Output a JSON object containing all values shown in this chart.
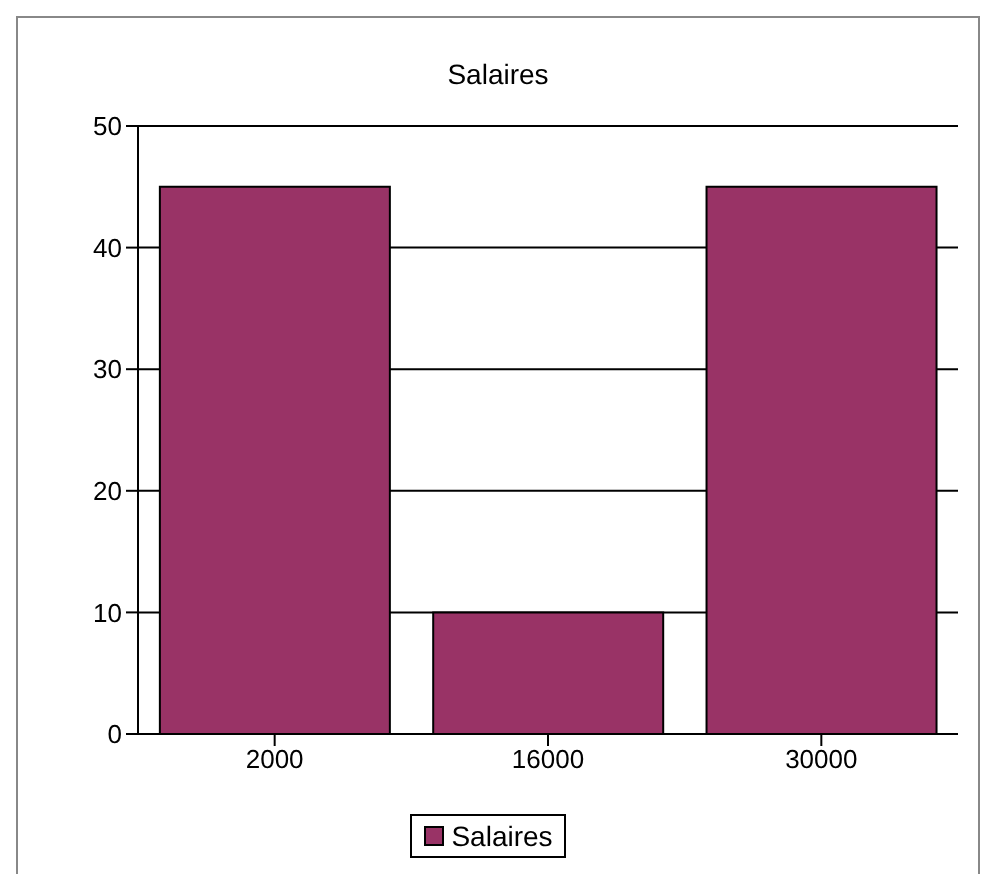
{
  "chart_data": {
    "type": "bar",
    "title": "Salaires",
    "categories": [
      "2000",
      "16000",
      "30000"
    ],
    "series": [
      {
        "name": "Salaires",
        "color": "#993366",
        "values": [
          45,
          10,
          45
        ]
      }
    ],
    "ylim": [
      0,
      50
    ],
    "yticks": [
      0,
      10,
      20,
      30,
      40,
      50
    ],
    "grid": "y",
    "legend": "bottom"
  }
}
